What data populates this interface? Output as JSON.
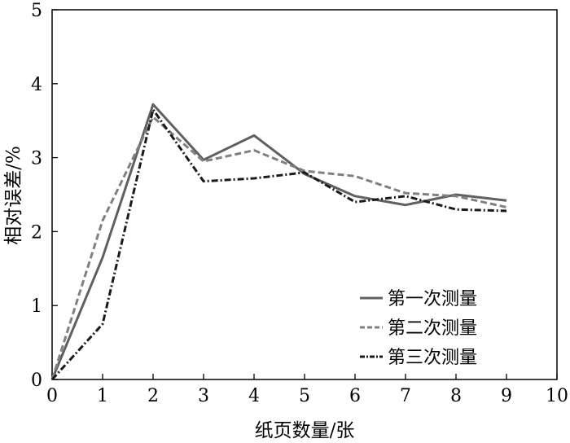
{
  "chart_data": {
    "type": "line",
    "xlabel": "纸页数量/张",
    "ylabel": "相对误差/%",
    "xlim": [
      0,
      10
    ],
    "ylim": [
      0,
      5
    ],
    "xticks": [
      0,
      1,
      2,
      3,
      4,
      5,
      6,
      7,
      8,
      9,
      10
    ],
    "yticks": [
      0,
      1,
      2,
      3,
      4,
      5
    ],
    "grid": false,
    "legend_position": "bottom-right",
    "x": [
      0,
      1,
      2,
      3,
      4,
      5,
      6,
      7,
      8,
      9
    ],
    "series": [
      {
        "name": "第一次测量",
        "values": [
          0,
          1.65,
          3.72,
          2.97,
          3.3,
          2.78,
          2.48,
          2.36,
          2.5,
          2.42
        ],
        "color": "#606060",
        "style": "solid"
      },
      {
        "name": "第二次测量",
        "values": [
          0,
          2.15,
          3.55,
          2.95,
          3.1,
          2.82,
          2.75,
          2.52,
          2.48,
          2.33
        ],
        "color": "#808080",
        "style": "dashed"
      },
      {
        "name": "第三次测量",
        "values": [
          0,
          0.75,
          3.65,
          2.68,
          2.72,
          2.8,
          2.4,
          2.48,
          2.3,
          2.28
        ],
        "color": "#1a1a1a",
        "style": "dashdot"
      }
    ]
  }
}
